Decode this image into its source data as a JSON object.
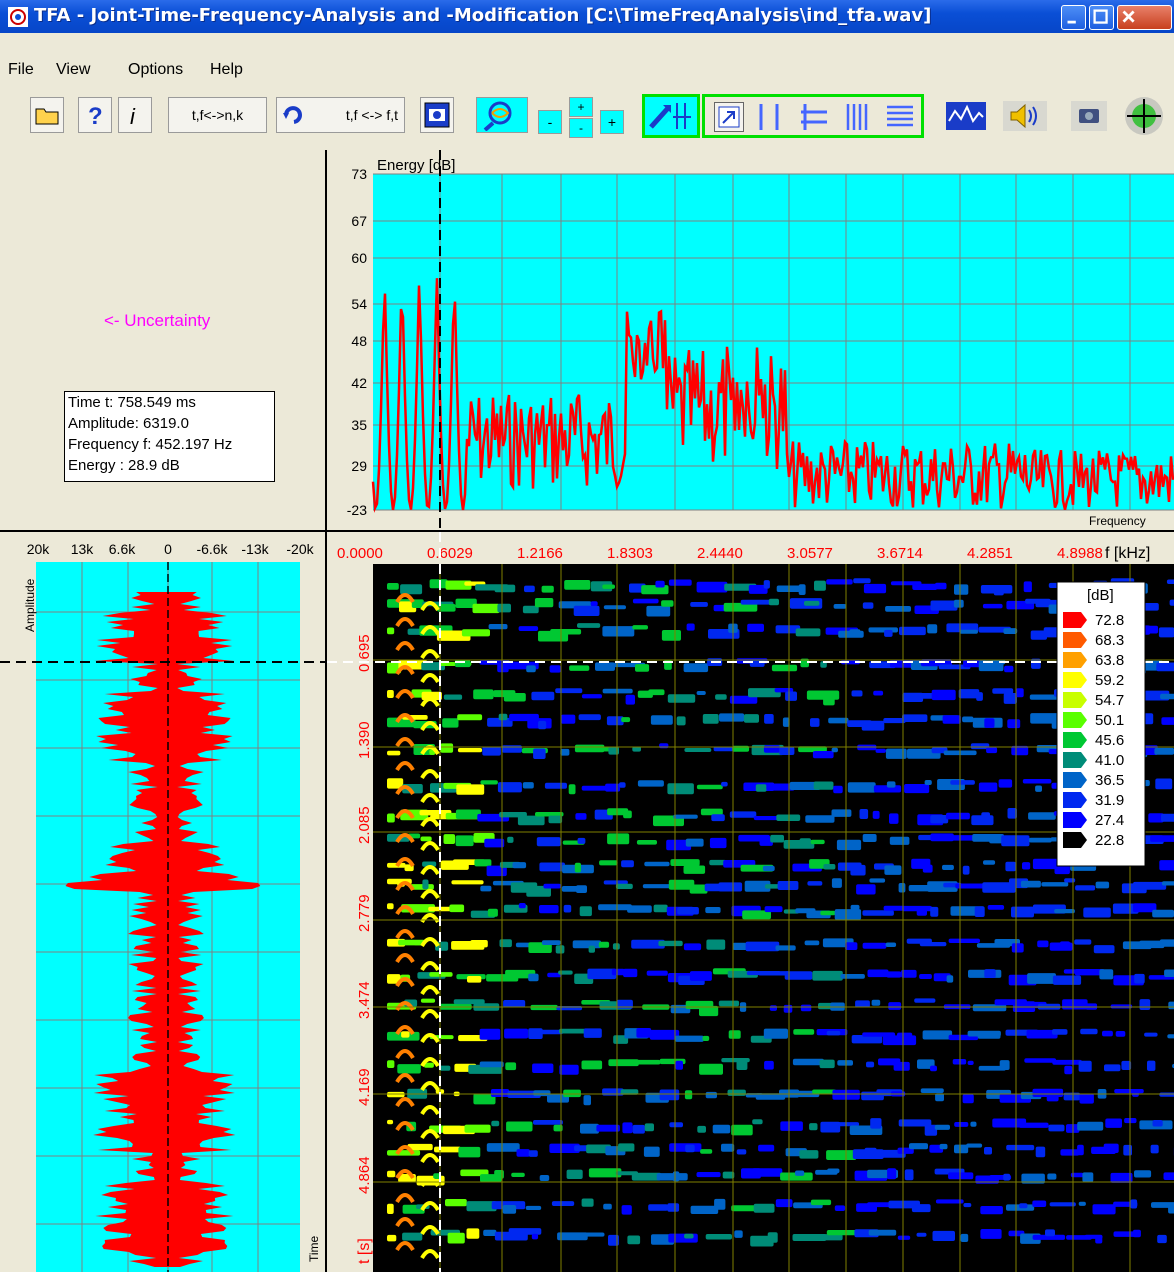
{
  "window": {
    "title": "TFA - Joint-Time-Frequency-Analysis and -Modification [C:\\TimeFreqAnalysis\\ind_tfa.wav]"
  },
  "menu": {
    "items": [
      "File",
      "View",
      "Options",
      "Help"
    ]
  },
  "toolbar": {
    "btn_convert_nk": "t,f<->n,k",
    "btn_convert_ft": "t,f <-> f,t",
    "btn_zoom_minus": "-",
    "btn_zoom_plus_top": "+",
    "btn_zoom_minus_bottom": "-",
    "btn_zoom_plus": "+"
  },
  "info": {
    "uncertainty_label": "<- Uncertainty",
    "time": "Time t: 758.549 ms",
    "amplitude": "Amplitude: 6319.0",
    "frequency": "Frequency f: 452.197 Hz",
    "energy": "Energy : 28.9 dB"
  },
  "spectrum": {
    "ylabel": "Energy [dB]",
    "xlabel": "Frequency",
    "yticks": [
      "73",
      "67",
      "60",
      "54",
      "48",
      "42",
      "35",
      "29",
      "-23"
    ],
    "background": "#00ffff",
    "line_color": "#ff0000"
  },
  "waveform": {
    "xticks": [
      "20k",
      "13k",
      "6.6k",
      "0",
      "-6.6k",
      "-13k",
      "-20k"
    ],
    "ylabel": "Amplitude",
    "tlabel": "Time"
  },
  "spectrogram": {
    "xticks": [
      "0.0000",
      "0.6029",
      "1.2166",
      "1.8303",
      "2.4440",
      "3.0577",
      "3.6714",
      "4.2851",
      "4.8988"
    ],
    "xunit": "f [kHz]",
    "yticks": [
      "0.695",
      "1.390",
      "2.085",
      "2.779",
      "3.474",
      "4.169",
      "4.864"
    ],
    "yunit": "t [s]",
    "legend_title": "[dB]",
    "legend": [
      {
        "label": "72.8",
        "color": "#ff0000"
      },
      {
        "label": "68.3",
        "color": "#ff5a00"
      },
      {
        "label": "63.8",
        "color": "#ffa000"
      },
      {
        "label": "59.2",
        "color": "#ffff00"
      },
      {
        "label": "54.7",
        "color": "#c8ff00"
      },
      {
        "label": "50.1",
        "color": "#5aff00"
      },
      {
        "label": "45.6",
        "color": "#00c832"
      },
      {
        "label": "41.0",
        "color": "#008c78"
      },
      {
        "label": "36.5",
        "color": "#0064c8"
      },
      {
        "label": "31.9",
        "color": "#0028f0"
      },
      {
        "label": "27.4",
        "color": "#0000ff"
      },
      {
        "label": "22.8",
        "color": "#000000"
      }
    ]
  }
}
